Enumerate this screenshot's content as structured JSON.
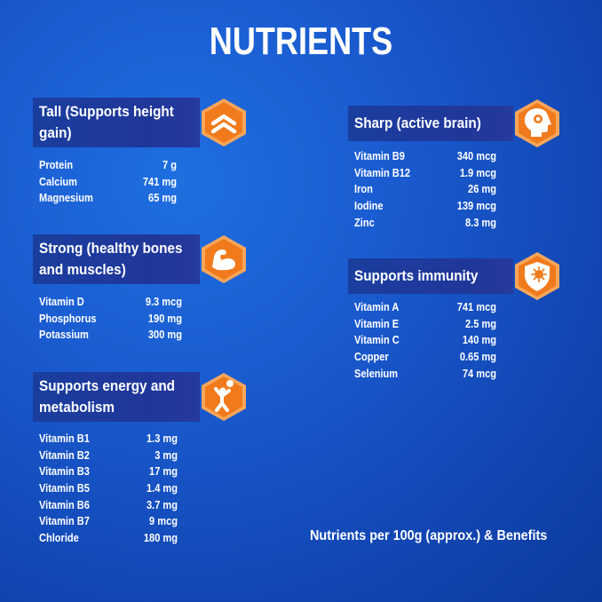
{
  "title": "NUTRIENTS",
  "footer": "Nutrients per 100g (approx.) & Benefits",
  "sections": [
    {
      "line1": "Tall (Supports height",
      "line2": "gain)",
      "icon": "chevron-up-icon",
      "items": [
        {
          "name": "Protein",
          "value": "7 g"
        },
        {
          "name": "Calcium",
          "value": "741 mg"
        },
        {
          "name": "Magnesium",
          "value": "65 mg"
        }
      ]
    },
    {
      "line1": "Strong (healthy bones",
      "line2": "and muscles)",
      "icon": "flexed-arm-icon",
      "items": [
        {
          "name": "Vitamin D",
          "value": "9.3 mcg"
        },
        {
          "name": "Phosphorus",
          "value": "190 mg"
        },
        {
          "name": "Potassium",
          "value": "300 mg"
        }
      ]
    },
    {
      "line1": "Supports energy and",
      "line2": "metabolism",
      "icon": "athlete-icon",
      "items": [
        {
          "name": "Vitamin B1",
          "value": "1.3 mg"
        },
        {
          "name": "Vitamin B2",
          "value": "3 mg"
        },
        {
          "name": "Vitamin B3",
          "value": "17 mg"
        },
        {
          "name": "Vitamin B5",
          "value": "1.4 mg"
        },
        {
          "name": "Vitamin B6",
          "value": "3.7 mg"
        },
        {
          "name": "Vitamin B7",
          "value": "9 mcg"
        },
        {
          "name": "Chloride",
          "value": "180 mg"
        }
      ]
    },
    {
      "line1": "Sharp (active brain)",
      "line2": "",
      "icon": "brain-head-icon",
      "items": [
        {
          "name": "Vitamin B9",
          "value": "340 mcg"
        },
        {
          "name": "Vitamin B12",
          "value": "1.9 mcg"
        },
        {
          "name": "Iron",
          "value": "26 mg"
        },
        {
          "name": "Iodine",
          "value": "139 mcg"
        },
        {
          "name": "Zinc",
          "value": "8.3 mg"
        }
      ]
    },
    {
      "line1": "Supports immunity",
      "line2": "",
      "icon": "shield-icon",
      "items": [
        {
          "name": "Vitamin A",
          "value": "741 mcg"
        },
        {
          "name": "Vitamin E",
          "value": "2.5 mg"
        },
        {
          "name": "Vitamin C",
          "value": "140 mg"
        },
        {
          "name": "Copper",
          "value": "0.65 mg"
        },
        {
          "name": "Selenium",
          "value": "74 mcg"
        }
      ]
    }
  ],
  "colors": {
    "background": "#1a5bd0",
    "banner": "#20379a",
    "badge_orange": "#f07a1c",
    "badge_ring": "#f9a65a",
    "text": "#ffffff"
  }
}
